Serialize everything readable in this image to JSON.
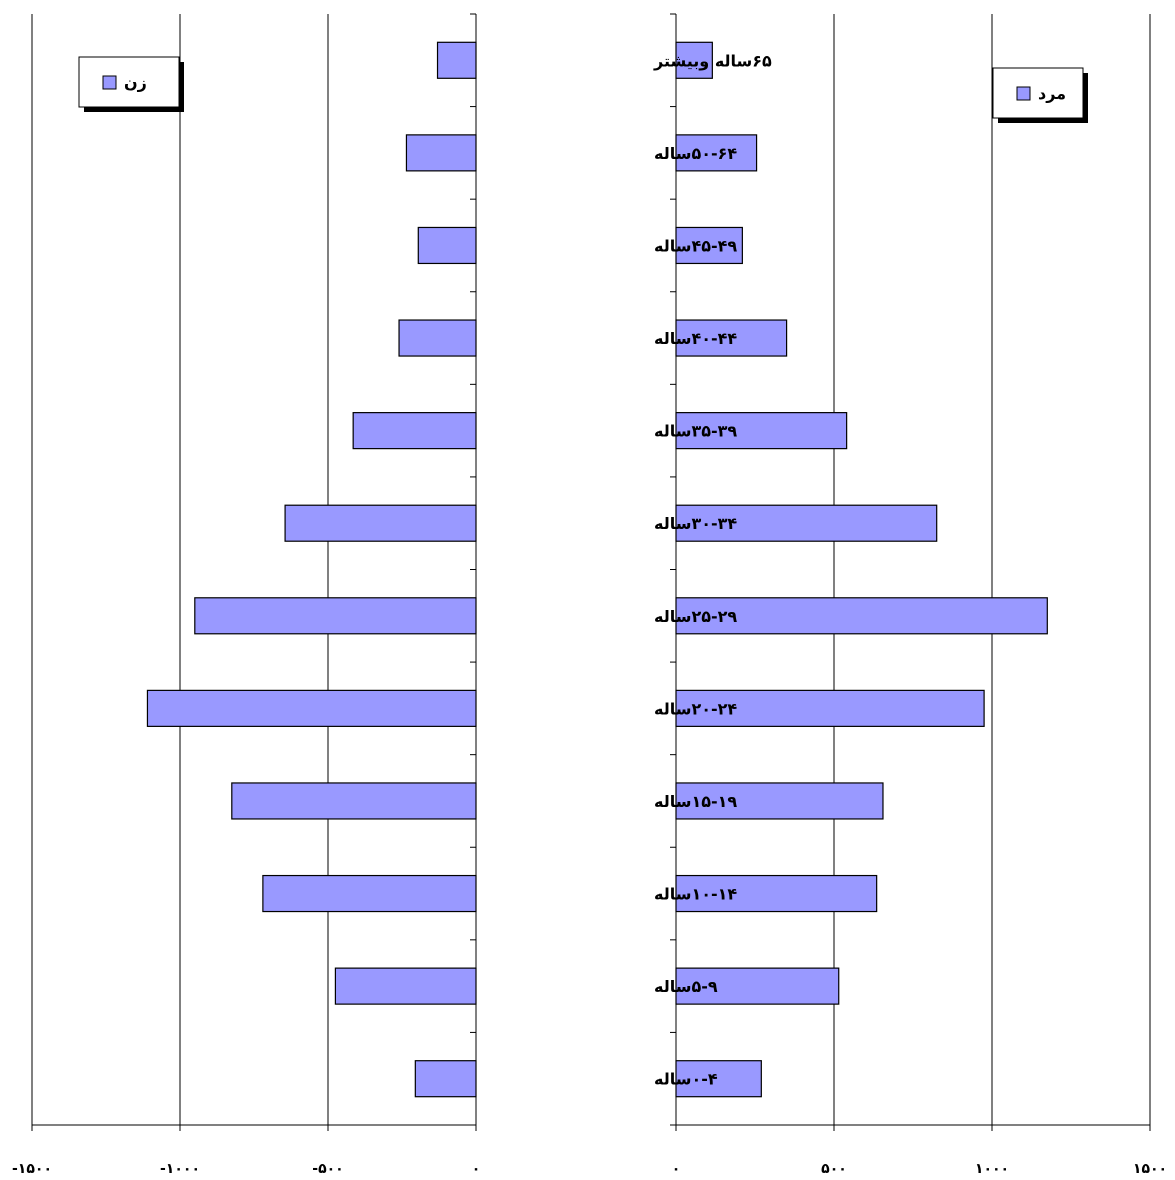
{
  "chart_data": {
    "type": "bar",
    "orientation": "horizontal",
    "layout": "population-pyramid",
    "categories": [
      "۰-۴ساله",
      "۵-۹ساله",
      "۱۰-۱۴ساله",
      "۱۵-۱۹ساله",
      "۲۰-۲۴ساله",
      "۲۵-۲۹ساله",
      "۳۰-۳۴ساله",
      "۳۵-۳۹ساله",
      "۴۰-۴۴ساله",
      "۴۵-۴۹ساله",
      "۵۰-۶۴ساله",
      "۶۵ساله وبیشتر"
    ],
    "series": [
      {
        "name": "زن",
        "side": "left",
        "values": [
          -205,
          -475,
          -720,
          -825,
          -1110,
          -950,
          -645,
          -415,
          -260,
          -195,
          -235,
          -130
        ]
      },
      {
        "name": "مرد",
        "side": "right",
        "values": [
          270,
          515,
          635,
          655,
          975,
          1175,
          825,
          540,
          350,
          210,
          255,
          115
        ]
      }
    ],
    "axes": [
      {
        "side": "left",
        "range": [
          -1500,
          0
        ],
        "ticks": [
          -1500,
          -1000,
          -500,
          0
        ],
        "tick_labels": [
          "-۱۵۰۰",
          "-۱۰۰۰",
          "-۵۰۰",
          "۰"
        ]
      },
      {
        "side": "right",
        "range": [
          0,
          1500
        ],
        "ticks": [
          0,
          500,
          1000,
          1500
        ],
        "tick_labels": [
          "۰",
          "۵۰۰",
          "۱۰۰۰",
          "۱۵۰۰"
        ]
      }
    ],
    "grid": "vertical",
    "legend": [
      {
        "label": "زن",
        "placement": "top-left"
      },
      {
        "label": "مرد",
        "placement": "top-right"
      }
    ],
    "colors": {
      "bar": "#9999ff",
      "bar_stroke": "#000000",
      "grid": "#000000",
      "legend_shadow": "#000000"
    }
  }
}
